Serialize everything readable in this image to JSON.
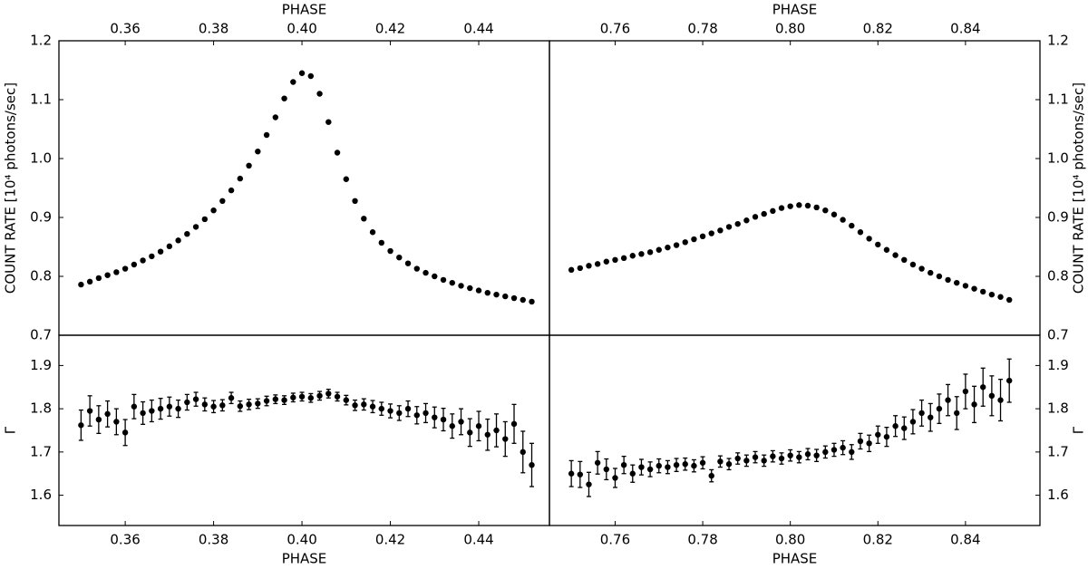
{
  "chart_data": [
    {
      "type": "scatter",
      "xlabel": "PHASE",
      "xlabel_position": "top",
      "ylabel": "COUNT RATE [10⁴ photons/sec]",
      "yaxis_side": "left",
      "color": "#000000",
      "xlim": [
        0.345,
        0.456
      ],
      "xticks": [
        0.36,
        0.38,
        {
          "value": 0.4,
          "label": "0.40"
        },
        0.42,
        0.44
      ],
      "ylim": [
        0.7,
        1.2
      ],
      "yticks": [
        0.7,
        0.8,
        0.9,
        {
          "value": 1.0,
          "label": "1.0"
        },
        1.1,
        1.2
      ],
      "x": [
        0.35,
        0.352,
        0.354,
        0.356,
        0.358,
        0.36,
        0.362,
        0.364,
        0.366,
        0.368,
        0.37,
        0.372,
        0.374,
        0.376,
        0.378,
        0.38,
        0.382,
        0.384,
        0.386,
        0.388,
        0.39,
        0.392,
        0.394,
        0.396,
        0.398,
        0.4,
        0.402,
        0.404,
        0.406,
        0.408,
        0.41,
        0.412,
        0.414,
        0.416,
        0.418,
        0.42,
        0.422,
        0.424,
        0.426,
        0.428,
        0.43,
        0.432,
        0.434,
        0.436,
        0.438,
        0.44,
        0.442,
        0.444,
        0.446,
        0.448,
        0.45,
        0.452
      ],
      "values": [
        0.786,
        0.791,
        0.797,
        0.802,
        0.807,
        0.813,
        0.82,
        0.827,
        0.834,
        0.842,
        0.851,
        0.861,
        0.872,
        0.884,
        0.897,
        0.912,
        0.928,
        0.946,
        0.966,
        0.988,
        1.012,
        1.04,
        1.07,
        1.102,
        1.13,
        1.145,
        1.14,
        1.11,
        1.062,
        1.01,
        0.965,
        0.928,
        0.898,
        0.875,
        0.857,
        0.843,
        0.832,
        0.822,
        0.813,
        0.806,
        0.8,
        0.794,
        0.789,
        0.784,
        0.78,
        0.776,
        0.772,
        0.769,
        0.766,
        0.763,
        0.76,
        0.757
      ]
    },
    {
      "type": "scatter",
      "xlabel": "PHASE",
      "xlabel_position": "top",
      "ylabel": "COUNT RATE [10⁴ photons/sec]",
      "yaxis_side": "right",
      "color": "#000000",
      "xlim": [
        0.745,
        0.857
      ],
      "xticks": [
        0.76,
        0.78,
        {
          "value": 0.8,
          "label": "0.80"
        },
        0.82,
        0.84
      ],
      "ylim": [
        0.7,
        1.2
      ],
      "yticks": [
        0.7,
        0.8,
        0.9,
        {
          "value": 1.0,
          "label": "1.0"
        },
        1.1,
        1.2
      ],
      "x": [
        0.75,
        0.752,
        0.754,
        0.756,
        0.758,
        0.76,
        0.762,
        0.764,
        0.766,
        0.768,
        0.77,
        0.772,
        0.774,
        0.776,
        0.778,
        0.78,
        0.782,
        0.784,
        0.786,
        0.788,
        0.79,
        0.792,
        0.794,
        0.796,
        0.798,
        0.8,
        0.802,
        0.804,
        0.806,
        0.808,
        0.81,
        0.812,
        0.814,
        0.816,
        0.818,
        0.82,
        0.822,
        0.824,
        0.826,
        0.828,
        0.83,
        0.832,
        0.834,
        0.836,
        0.838,
        0.84,
        0.842,
        0.844,
        0.846,
        0.848,
        0.85
      ],
      "values": [
        0.811,
        0.814,
        0.818,
        0.821,
        0.825,
        0.828,
        0.831,
        0.835,
        0.838,
        0.841,
        0.845,
        0.849,
        0.853,
        0.858,
        0.863,
        0.868,
        0.873,
        0.878,
        0.884,
        0.889,
        0.895,
        0.901,
        0.906,
        0.911,
        0.916,
        0.919,
        0.921,
        0.92,
        0.917,
        0.912,
        0.905,
        0.896,
        0.886,
        0.875,
        0.864,
        0.854,
        0.845,
        0.836,
        0.828,
        0.82,
        0.813,
        0.806,
        0.8,
        0.794,
        0.789,
        0.784,
        0.779,
        0.774,
        0.769,
        0.765,
        0.76
      ]
    },
    {
      "type": "errorbar",
      "xlabel": "PHASE",
      "xlabel_position": "bottom",
      "ylabel": "Γ",
      "yaxis_side": "left",
      "color": "#000000",
      "xlim": [
        0.345,
        0.456
      ],
      "xticks": [
        0.36,
        0.38,
        {
          "value": 0.4,
          "label": "0.40"
        },
        0.42,
        0.44
      ],
      "ylim": [
        1.53,
        1.97
      ],
      "yticks": [
        1.6,
        1.7,
        1.8,
        1.9
      ],
      "x": [
        0.35,
        0.352,
        0.354,
        0.356,
        0.358,
        0.36,
        0.362,
        0.364,
        0.366,
        0.368,
        0.37,
        0.372,
        0.374,
        0.376,
        0.378,
        0.38,
        0.382,
        0.384,
        0.386,
        0.388,
        0.39,
        0.392,
        0.394,
        0.396,
        0.398,
        0.4,
        0.402,
        0.404,
        0.406,
        0.408,
        0.41,
        0.412,
        0.414,
        0.416,
        0.418,
        0.42,
        0.422,
        0.424,
        0.426,
        0.428,
        0.43,
        0.432,
        0.434,
        0.436,
        0.438,
        0.44,
        0.442,
        0.444,
        0.446,
        0.448,
        0.45,
        0.452
      ],
      "values": [
        1.762,
        1.795,
        1.775,
        1.788,
        1.77,
        1.745,
        1.805,
        1.79,
        1.795,
        1.8,
        1.805,
        1.8,
        1.815,
        1.822,
        1.81,
        1.805,
        1.808,
        1.825,
        1.806,
        1.81,
        1.812,
        1.818,
        1.822,
        1.82,
        1.826,
        1.828,
        1.825,
        1.83,
        1.835,
        1.828,
        1.82,
        1.808,
        1.81,
        1.805,
        1.8,
        1.795,
        1.79,
        1.8,
        1.785,
        1.79,
        1.78,
        1.775,
        1.76,
        1.77,
        1.745,
        1.76,
        1.74,
        1.75,
        1.73,
        1.765,
        1.7,
        1.67
      ],
      "errors": [
        0.035,
        0.035,
        0.032,
        0.03,
        0.03,
        0.03,
        0.028,
        0.026,
        0.025,
        0.024,
        0.022,
        0.02,
        0.018,
        0.016,
        0.015,
        0.014,
        0.013,
        0.013,
        0.012,
        0.012,
        0.011,
        0.011,
        0.01,
        0.01,
        0.01,
        0.01,
        0.01,
        0.01,
        0.01,
        0.01,
        0.011,
        0.012,
        0.013,
        0.014,
        0.015,
        0.016,
        0.017,
        0.018,
        0.02,
        0.022,
        0.024,
        0.026,
        0.028,
        0.03,
        0.032,
        0.034,
        0.036,
        0.038,
        0.04,
        0.045,
        0.048,
        0.05
      ]
    },
    {
      "type": "errorbar",
      "xlabel": "PHASE",
      "xlabel_position": "bottom",
      "ylabel": "Γ",
      "yaxis_side": "right",
      "color": "#000000",
      "xlim": [
        0.745,
        0.857
      ],
      "xticks": [
        0.76,
        0.78,
        {
          "value": 0.8,
          "label": "0.80"
        },
        0.82,
        0.84
      ],
      "ylim": [
        1.53,
        1.97
      ],
      "yticks": [
        1.6,
        1.7,
        1.8,
        1.9
      ],
      "x": [
        0.75,
        0.752,
        0.754,
        0.756,
        0.758,
        0.76,
        0.762,
        0.764,
        0.766,
        0.768,
        0.77,
        0.772,
        0.774,
        0.776,
        0.778,
        0.78,
        0.782,
        0.784,
        0.786,
        0.788,
        0.79,
        0.792,
        0.794,
        0.796,
        0.798,
        0.8,
        0.802,
        0.804,
        0.806,
        0.808,
        0.81,
        0.812,
        0.814,
        0.816,
        0.818,
        0.82,
        0.822,
        0.824,
        0.826,
        0.828,
        0.83,
        0.832,
        0.834,
        0.836,
        0.838,
        0.84,
        0.842,
        0.844,
        0.846,
        0.848,
        0.85
      ],
      "values": [
        1.65,
        1.648,
        1.625,
        1.675,
        1.66,
        1.64,
        1.67,
        1.65,
        1.665,
        1.66,
        1.668,
        1.665,
        1.67,
        1.672,
        1.668,
        1.675,
        1.645,
        1.678,
        1.672,
        1.685,
        1.68,
        1.688,
        1.68,
        1.69,
        1.685,
        1.692,
        1.688,
        1.695,
        1.692,
        1.7,
        1.705,
        1.71,
        1.7,
        1.725,
        1.72,
        1.74,
        1.735,
        1.76,
        1.755,
        1.77,
        1.79,
        1.78,
        1.8,
        1.82,
        1.79,
        1.84,
        1.81,
        1.85,
        1.83,
        1.82,
        1.865
      ],
      "errors": [
        0.03,
        0.03,
        0.028,
        0.026,
        0.024,
        0.022,
        0.02,
        0.02,
        0.018,
        0.017,
        0.016,
        0.015,
        0.015,
        0.014,
        0.014,
        0.014,
        0.014,
        0.013,
        0.013,
        0.013,
        0.013,
        0.013,
        0.013,
        0.013,
        0.013,
        0.013,
        0.013,
        0.013,
        0.014,
        0.014,
        0.015,
        0.016,
        0.017,
        0.018,
        0.019,
        0.02,
        0.022,
        0.024,
        0.026,
        0.028,
        0.03,
        0.032,
        0.034,
        0.036,
        0.038,
        0.04,
        0.042,
        0.044,
        0.046,
        0.048,
        0.05
      ]
    }
  ]
}
